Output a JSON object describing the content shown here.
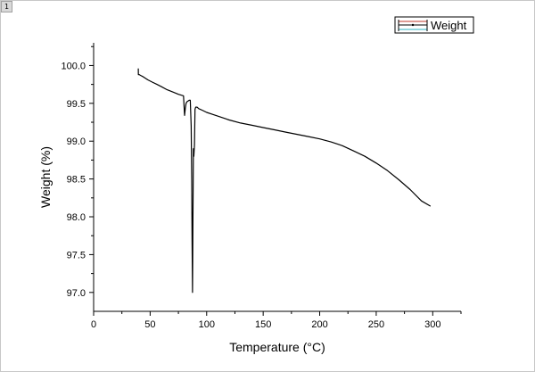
{
  "page": {
    "badge": "1"
  },
  "chart_data": {
    "type": "line",
    "title": "",
    "xlabel": "Temperature (°C)",
    "ylabel": "Weight (%)",
    "xlim": [
      0,
      325
    ],
    "ylim": [
      96.75,
      100.3
    ],
    "x_ticks": [
      0,
      50,
      100,
      150,
      200,
      250,
      300
    ],
    "x_tick_labels": [
      "0",
      "50",
      "100",
      "150",
      "200",
      "250",
      "300"
    ],
    "y_ticks": [
      97.0,
      97.5,
      98.0,
      98.5,
      99.0,
      99.5,
      100.0
    ],
    "y_tick_labels": [
      "97.0",
      "97.5",
      "98.0",
      "98.5",
      "99.0",
      "99.5",
      "100.0"
    ],
    "grid": false,
    "legend_position": "top-right",
    "series": [
      {
        "name": "Weight",
        "color": "#000000",
        "x": [
          39.5,
          39.6,
          40.3,
          41.5,
          44,
          48,
          52,
          56,
          60,
          65,
          70,
          75,
          79.5,
          80.5,
          81.2,
          81.8,
          82.5,
          83.5,
          84.5,
          85.5,
          86.3,
          86.8,
          87.1,
          87.5,
          87.9,
          88.3,
          88.7,
          89.2,
          89.7,
          90.3,
          91.5,
          93,
          96,
          100,
          110,
          120,
          130,
          140,
          150,
          160,
          170,
          180,
          190,
          200,
          210,
          220,
          230,
          240,
          250,
          260,
          270,
          280,
          290,
          298
        ],
        "y": [
          99.96,
          99.88,
          99.88,
          99.87,
          99.85,
          99.81,
          99.78,
          99.75,
          99.72,
          99.68,
          99.65,
          99.62,
          99.6,
          99.34,
          99.44,
          99.5,
          99.52,
          99.53,
          99.54,
          99.54,
          99.2,
          98.5,
          97.7,
          97.0,
          98.0,
          98.9,
          98.8,
          98.95,
          99.42,
          99.45,
          99.45,
          99.43,
          99.41,
          99.38,
          99.33,
          99.28,
          99.24,
          99.21,
          99.18,
          99.15,
          99.12,
          99.09,
          99.06,
          99.03,
          98.99,
          98.94,
          98.87,
          98.8,
          98.71,
          98.61,
          98.49,
          98.36,
          98.21,
          98.14
        ]
      }
    ]
  }
}
